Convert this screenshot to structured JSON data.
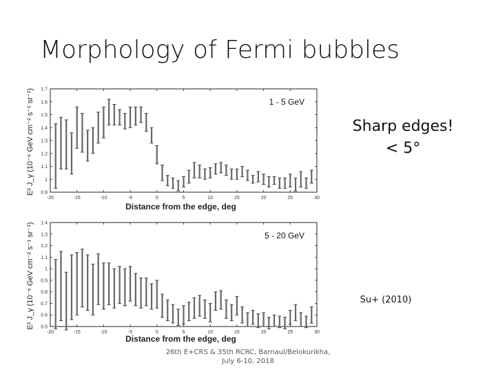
{
  "slide": {
    "title": "Morphology of Fermi bubbles",
    "note_edges": "Sharp edges!",
    "note_angle": "< 5°",
    "note_ref": "Su+ (2010)",
    "footer_line1": "26th E+CRS & 35th RCRC, Barnaul/Belokurikha,",
    "footer_line2": "July 6-10, 2018"
  },
  "chart_data": [
    {
      "type": "errorbar",
      "title": "1 - 5 GeV",
      "xlabel": "Distance from the edge, deg",
      "ylabel": "E² J_γ (10⁻⁶ GeV cm⁻² s⁻¹ sr⁻¹)",
      "xlim": [
        -20,
        30
      ],
      "ylim": [
        0.9,
        1.7
      ],
      "xticks": [
        -20,
        -15,
        -10,
        -5,
        0,
        5,
        10,
        15,
        20,
        25,
        30
      ],
      "yticks": [
        0.9,
        1.0,
        1.1,
        1.2,
        1.3,
        1.4,
        1.5,
        1.6,
        1.7
      ],
      "ytick_labels": [
        "0.9",
        "1",
        "1.1",
        "1.2",
        "1.3",
        "1.4",
        "1.5",
        "1.6",
        "1.7"
      ],
      "x": [
        -19,
        -18,
        -17,
        -16,
        -15,
        -14,
        -13,
        -12,
        -11,
        -10,
        -9,
        -8,
        -7,
        -6,
        -5,
        -4,
        -3,
        -2,
        -1,
        0,
        1,
        2,
        3,
        4,
        5,
        6,
        7,
        8,
        9,
        10,
        11,
        12,
        13,
        14,
        15,
        16,
        17,
        18,
        19,
        20,
        21,
        22,
        23,
        24,
        25,
        26,
        27,
        28,
        29
      ],
      "y": [
        1.18,
        1.28,
        1.27,
        1.2,
        1.4,
        1.36,
        1.26,
        1.3,
        1.4,
        1.44,
        1.52,
        1.5,
        1.48,
        1.45,
        1.48,
        1.49,
        1.5,
        1.44,
        1.34,
        1.19,
        1.05,
        0.99,
        0.97,
        0.95,
        0.98,
        1.02,
        1.07,
        1.06,
        1.04,
        1.05,
        1.08,
        1.09,
        1.07,
        1.04,
        1.04,
        1.06,
        1.03,
        1.0,
        1.02,
        1.0,
        0.98,
        0.99,
        0.97,
        0.97,
        0.99,
        0.96,
        1.0,
        0.97,
        1.02
      ],
      "err": [
        0.25,
        0.2,
        0.19,
        0.16,
        0.16,
        0.15,
        0.12,
        0.1,
        0.12,
        0.12,
        0.1,
        0.08,
        0.06,
        0.06,
        0.08,
        0.07,
        0.06,
        0.07,
        0.06,
        0.07,
        0.06,
        0.04,
        0.04,
        0.04,
        0.04,
        0.05,
        0.06,
        0.05,
        0.04,
        0.04,
        0.04,
        0.04,
        0.04,
        0.04,
        0.04,
        0.04,
        0.04,
        0.03,
        0.04,
        0.04,
        0.04,
        0.03,
        0.04,
        0.04,
        0.05,
        0.05,
        0.06,
        0.04,
        0.05
      ]
    },
    {
      "type": "errorbar",
      "title": "5 - 20 GeV",
      "xlabel": "Distance from the edge, deg",
      "ylabel": "E² J_γ (10⁻⁶ GeV cm⁻² s⁻¹ sr⁻¹)",
      "xlim": [
        -20,
        30
      ],
      "ylim": [
        0.5,
        1.4
      ],
      "xticks": [
        -20,
        -15,
        -10,
        -5,
        0,
        5,
        10,
        15,
        20,
        25,
        30
      ],
      "yticks": [
        0.5,
        0.6,
        0.7,
        0.8,
        0.9,
        1.0,
        1.1,
        1.2,
        1.3,
        1.4
      ],
      "ytick_labels": [
        "0.5",
        "0.6",
        "0.7",
        "0.8",
        "0.9",
        "1",
        "1.1",
        "1.2",
        "1.3",
        "1.4"
      ],
      "x": [
        -19,
        -18,
        -17,
        -16,
        -15,
        -14,
        -13,
        -12,
        -11,
        -10,
        -9,
        -8,
        -7,
        -6,
        -5,
        -4,
        -3,
        -2,
        -1,
        0,
        1,
        2,
        3,
        4,
        5,
        6,
        7,
        8,
        9,
        10,
        11,
        12,
        13,
        14,
        15,
        16,
        17,
        18,
        19,
        20,
        21,
        22,
        23,
        24,
        25,
        26,
        27,
        28,
        29
      ],
      "y": [
        0.78,
        0.85,
        0.72,
        0.84,
        0.87,
        0.92,
        0.88,
        0.82,
        0.91,
        0.85,
        0.87,
        0.83,
        0.86,
        0.84,
        0.87,
        0.82,
        0.79,
        0.8,
        0.76,
        0.78,
        0.68,
        0.64,
        0.61,
        0.58,
        0.6,
        0.63,
        0.66,
        0.68,
        0.65,
        0.62,
        0.72,
        0.73,
        0.65,
        0.62,
        0.68,
        0.6,
        0.56,
        0.58,
        0.55,
        0.56,
        0.53,
        0.55,
        0.54,
        0.53,
        0.58,
        0.62,
        0.56,
        0.54,
        0.6
      ],
      "err": [
        0.3,
        0.3,
        0.25,
        0.28,
        0.27,
        0.25,
        0.24,
        0.22,
        0.22,
        0.2,
        0.18,
        0.17,
        0.16,
        0.16,
        0.15,
        0.14,
        0.13,
        0.12,
        0.11,
        0.12,
        0.1,
        0.09,
        0.08,
        0.07,
        0.08,
        0.08,
        0.09,
        0.09,
        0.08,
        0.08,
        0.08,
        0.08,
        0.08,
        0.07,
        0.08,
        0.07,
        0.06,
        0.06,
        0.06,
        0.06,
        0.05,
        0.05,
        0.05,
        0.05,
        0.06,
        0.07,
        0.06,
        0.05,
        0.07
      ]
    }
  ]
}
